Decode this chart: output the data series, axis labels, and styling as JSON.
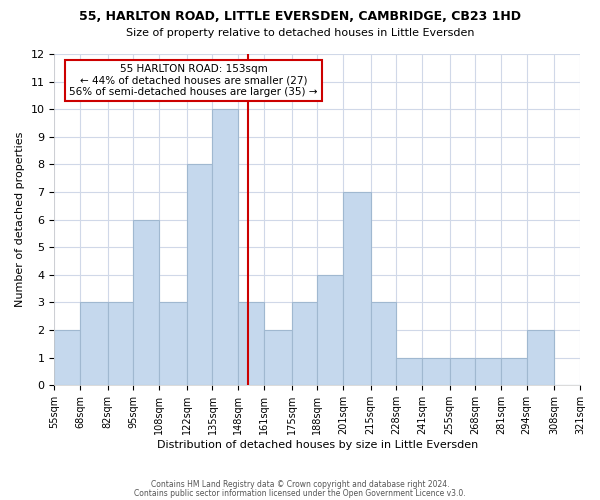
{
  "title1": "55, HARLTON ROAD, LITTLE EVERSDEN, CAMBRIDGE, CB23 1HD",
  "title2": "Size of property relative to detached houses in Little Eversden",
  "xlabel": "Distribution of detached houses by size in Little Eversden",
  "ylabel": "Number of detached properties",
  "bin_labels": [
    "55sqm",
    "68sqm",
    "82sqm",
    "95sqm",
    "108sqm",
    "122sqm",
    "135sqm",
    "148sqm",
    "161sqm",
    "175sqm",
    "188sqm",
    "201sqm",
    "215sqm",
    "228sqm",
    "241sqm",
    "255sqm",
    "268sqm",
    "281sqm",
    "294sqm",
    "308sqm",
    "321sqm"
  ],
  "bar_heights": [
    2,
    3,
    3,
    6,
    3,
    8,
    10,
    3,
    2,
    3,
    4,
    7,
    3,
    1,
    1,
    1,
    1,
    1,
    2,
    0
  ],
  "bin_edges": [
    55,
    68,
    82,
    95,
    108,
    122,
    135,
    148,
    161,
    175,
    188,
    201,
    215,
    228,
    241,
    255,
    268,
    281,
    294,
    308,
    321
  ],
  "bar_color": "#c5d8ed",
  "bar_edge_color": "#a0b8d0",
  "property_line_x": 153,
  "property_line_color": "#cc0000",
  "annotation_line1": "55 HARLTON ROAD: 153sqm",
  "annotation_line2": "← 44% of detached houses are smaller (27)",
  "annotation_line3": "56% of semi-detached houses are larger (35) →",
  "annotation_box_facecolor": "#ffffff",
  "annotation_box_edgecolor": "#cc0000",
  "ylim": [
    0,
    12
  ],
  "yticks": [
    0,
    1,
    2,
    3,
    4,
    5,
    6,
    7,
    8,
    9,
    10,
    11,
    12
  ],
  "grid_color": "#d0d8e8",
  "background_color": "#ffffff",
  "footer1": "Contains HM Land Registry data © Crown copyright and database right 2024.",
  "footer2": "Contains public sector information licensed under the Open Government Licence v3.0."
}
